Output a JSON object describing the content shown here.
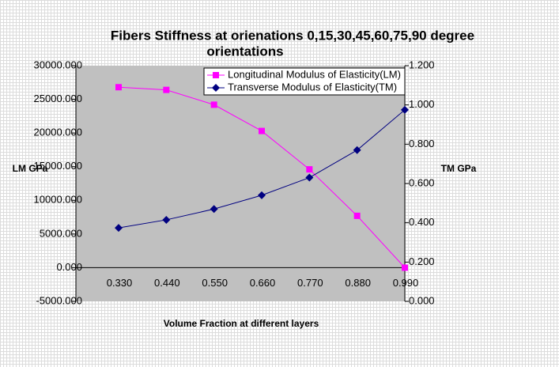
{
  "chart_data": {
    "type": "line",
    "title": "Fibers  Stiffness at orienations 0,15,30,45,60,75,90  degree",
    "subtitle": "orientations",
    "x_label": "Volume Fraction at different layers",
    "y_label": "LM GPa",
    "y2_label": "TM GPa",
    "categories": [
      "0.330",
      "0.440",
      "0.550",
      "0.660",
      "0.770",
      "0.880",
      "0.990"
    ],
    "series": [
      {
        "name": "Longitudinal Modulus of Elasticity(LM)",
        "color": "#ff00ff",
        "marker": "square",
        "values": [
          26800,
          26400,
          24200,
          20300,
          14600,
          7700,
          0
        ]
      },
      {
        "name": "Transverse Modulus of Elasticity(TM)",
        "color": "#000080",
        "marker": "diamond",
        "axis": "y2",
        "values": [
          0.374,
          0.415,
          0.47,
          0.54,
          0.63,
          0.77,
          0.975
        ]
      }
    ],
    "ylim": [
      -5000,
      30000
    ],
    "yticks": [
      {
        "value": -5000,
        "label": "-5000.000"
      },
      {
        "value": 0,
        "label": "0.000"
      },
      {
        "value": 5000,
        "label": "5000.000"
      },
      {
        "value": 10000,
        "label": "10000.000"
      },
      {
        "value": 15000,
        "label": "15000.000"
      },
      {
        "value": 20000,
        "label": "20000.000"
      },
      {
        "value": 25000,
        "label": "25000.000"
      },
      {
        "value": 30000,
        "label": "30000.000"
      }
    ],
    "y2lim": [
      0,
      1.2
    ],
    "y2ticks": [
      {
        "value": 0,
        "label": "0.000"
      },
      {
        "value": 0.2,
        "label": "0.200"
      },
      {
        "value": 0.4,
        "label": "0.400"
      },
      {
        "value": 0.6,
        "label": "0.600"
      },
      {
        "value": 0.8,
        "label": "0.800"
      },
      {
        "value": 1.0,
        "label": "1.000"
      },
      {
        "value": 1.2,
        "label": "1.200"
      }
    ],
    "legend": "top-right"
  }
}
